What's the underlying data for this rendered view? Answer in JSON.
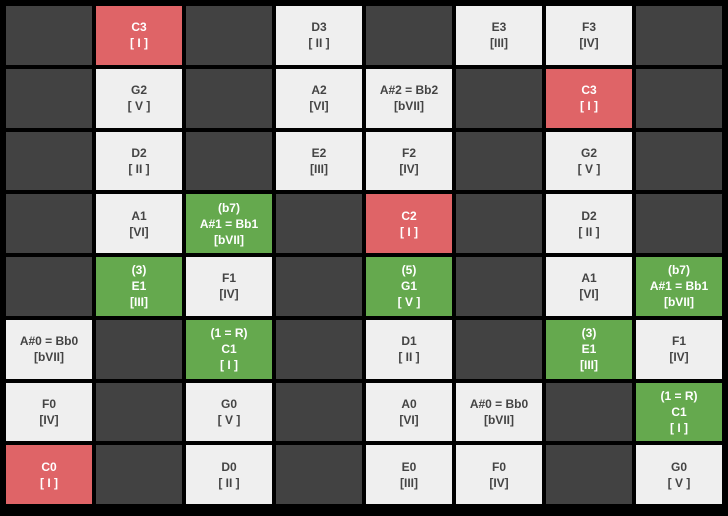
{
  "colors": {
    "empty": "#424242",
    "light": "#efefef",
    "red": "#df6467",
    "green": "#65a94e",
    "background": "#000000"
  },
  "rows": [
    [
      {
        "t": "empty",
        "label": ""
      },
      {
        "t": "red",
        "label": "C3\n[ I ]"
      },
      {
        "t": "empty",
        "label": ""
      },
      {
        "t": "light",
        "label": "D3\n[ II ]"
      },
      {
        "t": "empty",
        "label": ""
      },
      {
        "t": "light",
        "label": "E3\n[III]"
      },
      {
        "t": "light",
        "label": "F3\n[IV]"
      },
      {
        "t": "empty",
        "label": ""
      }
    ],
    [
      {
        "t": "empty",
        "label": ""
      },
      {
        "t": "light",
        "label": "G2\n[ V ]"
      },
      {
        "t": "empty",
        "label": ""
      },
      {
        "t": "light",
        "label": "A2\n[VI]"
      },
      {
        "t": "light",
        "label": "A#2 = Bb2\n[bVII]"
      },
      {
        "t": "empty",
        "label": ""
      },
      {
        "t": "red",
        "label": "C3\n[ I ]"
      },
      {
        "t": "empty",
        "label": ""
      }
    ],
    [
      {
        "t": "empty",
        "label": ""
      },
      {
        "t": "light",
        "label": "D2\n[ II ]"
      },
      {
        "t": "empty",
        "label": ""
      },
      {
        "t": "light",
        "label": "E2\n[III]"
      },
      {
        "t": "light",
        "label": "F2\n[IV]"
      },
      {
        "t": "empty",
        "label": ""
      },
      {
        "t": "light",
        "label": "G2\n[ V ]"
      },
      {
        "t": "empty",
        "label": ""
      }
    ],
    [
      {
        "t": "empty",
        "label": ""
      },
      {
        "t": "light",
        "label": "A1\n[VI]"
      },
      {
        "t": "green",
        "label": "(b7)\nA#1 = Bb1\n[bVII]"
      },
      {
        "t": "empty",
        "label": ""
      },
      {
        "t": "red",
        "label": "C2\n[ I ]"
      },
      {
        "t": "empty",
        "label": ""
      },
      {
        "t": "light",
        "label": "D2\n[ II ]"
      },
      {
        "t": "empty",
        "label": ""
      }
    ],
    [
      {
        "t": "empty",
        "label": ""
      },
      {
        "t": "green",
        "label": "(3)\nE1\n[III]"
      },
      {
        "t": "light",
        "label": "F1\n[IV]"
      },
      {
        "t": "empty",
        "label": ""
      },
      {
        "t": "green",
        "label": "(5)\nG1\n[ V ]"
      },
      {
        "t": "empty",
        "label": ""
      },
      {
        "t": "light",
        "label": "A1\n[VI]"
      },
      {
        "t": "green",
        "label": "(b7)\nA#1 = Bb1\n[bVII]"
      }
    ],
    [
      {
        "t": "light",
        "label": "A#0 = Bb0\n[bVII]"
      },
      {
        "t": "empty",
        "label": ""
      },
      {
        "t": "green",
        "label": "(1 = R)\nC1\n[ I ]"
      },
      {
        "t": "empty",
        "label": ""
      },
      {
        "t": "light",
        "label": "D1\n[ II ]"
      },
      {
        "t": "empty",
        "label": ""
      },
      {
        "t": "green",
        "label": "(3)\nE1\n[III]"
      },
      {
        "t": "light",
        "label": "F1\n[IV]"
      }
    ],
    [
      {
        "t": "light",
        "label": "F0\n[IV]"
      },
      {
        "t": "empty",
        "label": ""
      },
      {
        "t": "light",
        "label": "G0\n[ V ]"
      },
      {
        "t": "empty",
        "label": ""
      },
      {
        "t": "light",
        "label": "A0\n[VI]"
      },
      {
        "t": "light",
        "label": "A#0 = Bb0\n[bVII]"
      },
      {
        "t": "empty",
        "label": ""
      },
      {
        "t": "green",
        "label": "(1 = R)\nC1\n[ I ]"
      }
    ],
    [
      {
        "t": "red",
        "label": "C0\n[ I ]"
      },
      {
        "t": "empty",
        "label": ""
      },
      {
        "t": "light",
        "label": "D0\n[ II ]"
      },
      {
        "t": "empty",
        "label": ""
      },
      {
        "t": "light",
        "label": "E0\n[III]"
      },
      {
        "t": "light",
        "label": "F0\n[IV]"
      },
      {
        "t": "empty",
        "label": ""
      },
      {
        "t": "light",
        "label": "G0\n[ V ]"
      }
    ]
  ]
}
